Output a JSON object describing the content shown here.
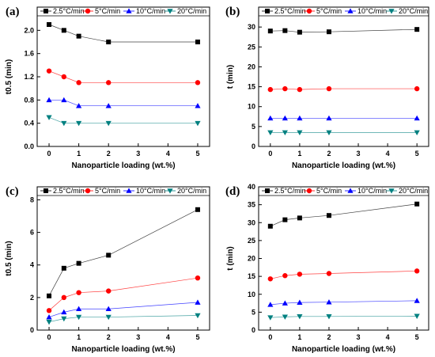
{
  "chart_data": [
    {
      "panel": "(a)",
      "type": "line",
      "xlabel": "Nanoparticle loading (wt.%)",
      "ylabel": "t0.5 (min)",
      "xlim": [
        -0.4,
        5.4
      ],
      "ylim": [
        0,
        2.4
      ],
      "xticks": [
        0,
        1,
        2,
        3,
        4,
        5
      ],
      "yticks": [
        0.0,
        0.4,
        0.8,
        1.2,
        1.6,
        2.0
      ],
      "ytick_labels": [
        "0.0",
        "0.4",
        "0.8",
        "1.2",
        "1.6",
        "2.0"
      ],
      "legend": "top",
      "series": [
        {
          "name": "2.5°C/min",
          "color": "#000000",
          "marker": "square",
          "x": [
            0,
            0.5,
            1,
            2,
            5
          ],
          "values": [
            2.1,
            2.0,
            1.9,
            1.8,
            1.8
          ]
        },
        {
          "name": "5°C/min",
          "color": "#ff0000",
          "marker": "circle",
          "x": [
            0,
            0.5,
            1,
            2,
            5
          ],
          "values": [
            1.3,
            1.2,
            1.1,
            1.1,
            1.1
          ]
        },
        {
          "name": "10°C/min",
          "color": "#0000ff",
          "marker": "triangle-up",
          "x": [
            0,
            0.5,
            1,
            2,
            5
          ],
          "values": [
            0.8,
            0.8,
            0.7,
            0.7,
            0.7
          ]
        },
        {
          "name": "20°C/min",
          "color": "#008080",
          "marker": "triangle-down",
          "x": [
            0,
            0.5,
            1,
            2,
            5
          ],
          "values": [
            0.5,
            0.4,
            0.4,
            0.4,
            0.4
          ]
        }
      ]
    },
    {
      "panel": "(b)",
      "type": "line",
      "xlabel": "Nanoparticle loading (wt.%)",
      "ylabel": "t (min)",
      "xlim": [
        -0.4,
        5.4
      ],
      "ylim": [
        0,
        35
      ],
      "xticks": [
        0,
        1,
        2,
        3,
        4,
        5
      ],
      "yticks": [
        0,
        5,
        10,
        15,
        20,
        25,
        30
      ],
      "ytick_labels": [
        "0",
        "5",
        "10",
        "15",
        "20",
        "25",
        "30"
      ],
      "legend": "top",
      "series": [
        {
          "name": "2.5°C/min",
          "color": "#000000",
          "marker": "square",
          "x": [
            0,
            0.5,
            1,
            2,
            5
          ],
          "values": [
            29.0,
            29.1,
            28.7,
            28.8,
            29.4
          ]
        },
        {
          "name": "5°C/min",
          "color": "#ff0000",
          "marker": "circle",
          "x": [
            0,
            0.5,
            1,
            2,
            5
          ],
          "values": [
            14.3,
            14.5,
            14.3,
            14.5,
            14.5
          ]
        },
        {
          "name": "10°C/min",
          "color": "#0000ff",
          "marker": "triangle-up",
          "x": [
            0,
            0.5,
            1,
            2,
            5
          ],
          "values": [
            7.1,
            7.1,
            7.1,
            7.1,
            7.1
          ]
        },
        {
          "name": "20°C/min",
          "color": "#008080",
          "marker": "triangle-down",
          "x": [
            0,
            0.5,
            1,
            2,
            5
          ],
          "values": [
            3.5,
            3.5,
            3.5,
            3.5,
            3.5
          ]
        }
      ]
    },
    {
      "panel": "(c)",
      "type": "line",
      "xlabel": "Nanoparticle loading (wt.%)",
      "ylabel": "t0.5 (min)",
      "xlim": [
        -0.4,
        5.4
      ],
      "ylim": [
        0,
        8.8
      ],
      "xticks": [
        0,
        1,
        2,
        3,
        4,
        5
      ],
      "yticks": [
        0,
        2,
        4,
        6,
        8
      ],
      "ytick_labels": [
        "0",
        "2",
        "4",
        "6",
        "8"
      ],
      "legend": "top",
      "series": [
        {
          "name": "2.5°C/min",
          "color": "#000000",
          "marker": "square",
          "x": [
            0,
            0.5,
            1,
            2,
            5
          ],
          "values": [
            2.1,
            3.8,
            4.1,
            4.6,
            7.4
          ]
        },
        {
          "name": "5°C/min",
          "color": "#ff0000",
          "marker": "circle",
          "x": [
            0,
            0.5,
            1,
            2,
            5
          ],
          "values": [
            1.2,
            2.0,
            2.3,
            2.4,
            3.2
          ]
        },
        {
          "name": "10°C/min",
          "color": "#0000ff",
          "marker": "triangle-up",
          "x": [
            0,
            0.5,
            1,
            2,
            5
          ],
          "values": [
            0.8,
            1.1,
            1.3,
            1.3,
            1.7
          ]
        },
        {
          "name": "20°C/min",
          "color": "#008080",
          "marker": "triangle-down",
          "x": [
            0,
            0.5,
            1,
            2,
            5
          ],
          "values": [
            0.5,
            0.7,
            0.8,
            0.8,
            0.9
          ]
        }
      ]
    },
    {
      "panel": "(d)",
      "type": "line",
      "xlabel": "Nanoparticle loading (wt.%)",
      "ylabel": "t (min)",
      "xlim": [
        -0.4,
        5.4
      ],
      "ylim": [
        0,
        40
      ],
      "xticks": [
        0,
        1,
        2,
        3,
        4,
        5
      ],
      "yticks": [
        0,
        5,
        10,
        15,
        20,
        25,
        30,
        35,
        40
      ],
      "ytick_labels": [
        "0",
        "5",
        "10",
        "15",
        "20",
        "25",
        "30",
        "35",
        "40"
      ],
      "legend": "top",
      "series": [
        {
          "name": "2.5°C/min",
          "color": "#000000",
          "marker": "square",
          "x": [
            0,
            0.5,
            1,
            2,
            5
          ],
          "values": [
            29.0,
            30.8,
            31.3,
            32.0,
            35.2
          ]
        },
        {
          "name": "5°C/min",
          "color": "#ff0000",
          "marker": "circle",
          "x": [
            0,
            0.5,
            1,
            2,
            5
          ],
          "values": [
            14.3,
            15.2,
            15.6,
            15.8,
            16.5
          ]
        },
        {
          "name": "10°C/min",
          "color": "#0000ff",
          "marker": "triangle-up",
          "x": [
            0,
            0.5,
            1,
            2,
            5
          ],
          "values": [
            7.1,
            7.5,
            7.7,
            7.8,
            8.2
          ]
        },
        {
          "name": "20°C/min",
          "color": "#008080",
          "marker": "triangle-down",
          "x": [
            0,
            0.5,
            1,
            2,
            5
          ],
          "values": [
            3.5,
            3.7,
            3.8,
            3.8,
            3.9
          ]
        }
      ]
    }
  ]
}
